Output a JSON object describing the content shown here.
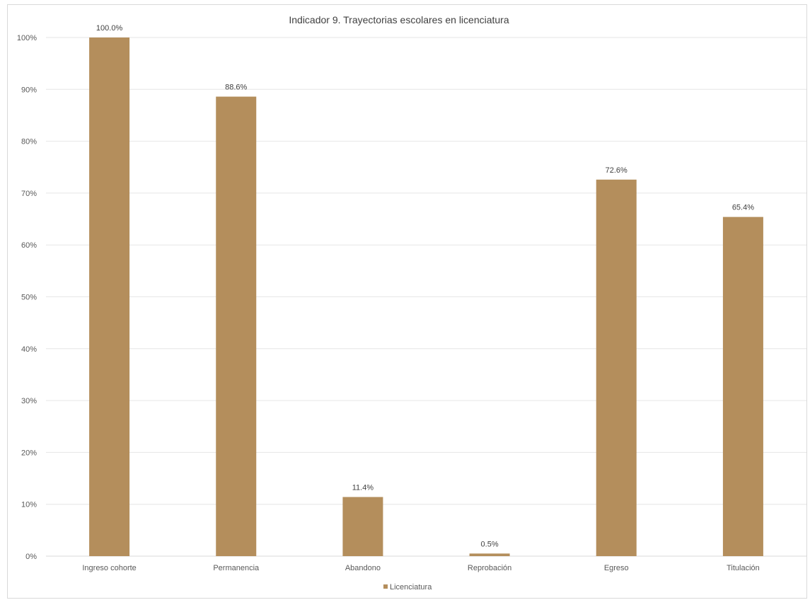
{
  "chart_data": {
    "type": "bar",
    "title": "Indicador 9. Trayectorias escolares en licenciatura",
    "xlabel": "",
    "ylabel": "",
    "categories": [
      "Ingreso cohorte",
      "Permanencia",
      "Abandono",
      "Reprobación",
      "Egreso",
      "Titulación"
    ],
    "series": [
      {
        "name": "Licenciatura",
        "values": [
          100.0,
          88.6,
          11.4,
          0.5,
          72.6,
          65.4
        ],
        "data_labels": [
          "100.0%",
          "88.6%",
          "11.4%",
          "0.5%",
          "72.6%",
          "65.4%"
        ],
        "color": "#b48e5c"
      }
    ],
    "ylim": [
      0,
      100
    ],
    "yticks": [
      0,
      10,
      20,
      30,
      40,
      50,
      60,
      70,
      80,
      90,
      100
    ],
    "ytick_labels": [
      "0%",
      "10%",
      "20%",
      "30%",
      "40%",
      "50%",
      "60%",
      "70%",
      "80%",
      "90%",
      "100%"
    ],
    "grid": true,
    "legend_position": "bottom",
    "gridline_color": "#e6e6e6",
    "axis_color": "#d9d9d9"
  }
}
